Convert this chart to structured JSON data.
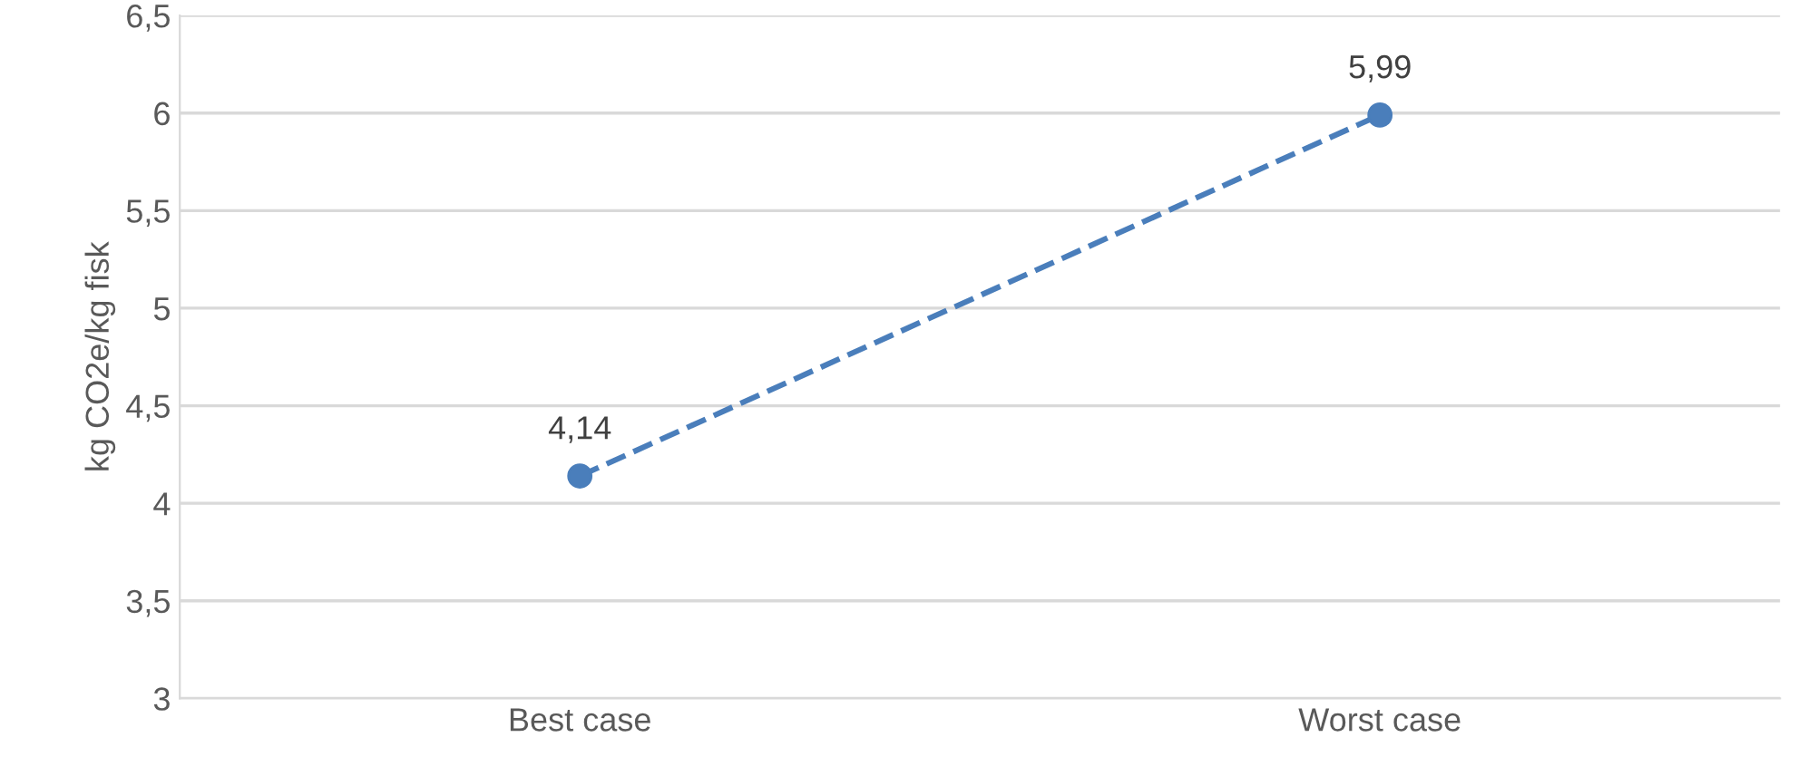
{
  "chart_data": {
    "type": "line",
    "ylabel": "kg CO2e/kg fisk",
    "categories": [
      "Best case",
      "Worst case"
    ],
    "series": [
      {
        "color": "#4a7ebb",
        "values": [
          4.14,
          5.99
        ],
        "value_labels": [
          "4,14",
          "5,99"
        ]
      }
    ],
    "ylim": [
      3,
      6.5
    ],
    "yticks": [
      {
        "value": 3,
        "label": "3"
      },
      {
        "value": 3.5,
        "label": "3,5"
      },
      {
        "value": 4,
        "label": "4"
      },
      {
        "value": 4.5,
        "label": "4,5"
      },
      {
        "value": 5,
        "label": "5"
      },
      {
        "value": 5.5,
        "label": "5,5"
      },
      {
        "value": 6,
        "label": "6"
      },
      {
        "value": 6.5,
        "label": "6,5"
      }
    ],
    "grid": "y",
    "marker": "circle",
    "line_style": "dashed"
  }
}
